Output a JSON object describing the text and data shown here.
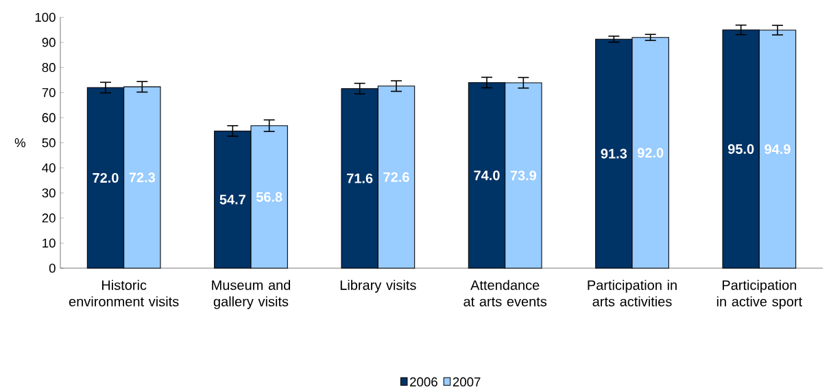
{
  "chart_data": {
    "type": "bar",
    "ylabel": "%",
    "categories": [
      "Historic environment visits",
      "Museum and gallery visits",
      "Library visits",
      "Attendance at arts events",
      "Participation in arts activities",
      "Participation in active sport"
    ],
    "series": [
      {
        "name": "2006",
        "color": "#003366",
        "values": [
          72.0,
          54.7,
          71.6,
          74.0,
          91.3,
          95.0
        ],
        "errors": [
          2.1,
          2.1,
          2.1,
          2.1,
          1.2,
          1.9
        ],
        "value_labels": [
          "72.0",
          "54.7",
          "71.6",
          "74.0",
          "91.3",
          "95.0"
        ]
      },
      {
        "name": "2007",
        "color": "#99ccff",
        "values": [
          72.3,
          56.8,
          72.6,
          73.9,
          92.0,
          94.9
        ],
        "errors": [
          2.1,
          2.3,
          2.1,
          2.1,
          1.2,
          1.9
        ],
        "value_labels": [
          "72.3",
          "56.8",
          "72.6",
          "73.9",
          "92.0",
          "94.9"
        ]
      }
    ],
    "ylim": [
      0,
      100
    ],
    "yticks": [
      0,
      10,
      20,
      30,
      40,
      50,
      60,
      70,
      80,
      90,
      100
    ],
    "legend": "bottom",
    "grid": false
  }
}
